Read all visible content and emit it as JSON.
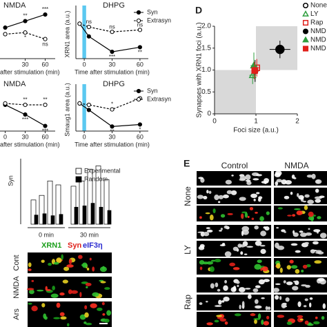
{
  "chart_data": [
    {
      "type": "line",
      "title": "NMDA",
      "x_label": "after stimulation (min)",
      "x": [
        0,
        30,
        60
      ],
      "xlim": [
        -13,
        75
      ],
      "xticks": [
        30,
        60
      ],
      "ylim": [
        0.5,
        2.0
      ],
      "series": [
        {
          "color": "#000000",
          "marker": "filled",
          "values": [
            1.45,
            1.65,
            1.85
          ],
          "significance": [
            null,
            "**",
            "***"
          ]
        },
        {
          "color": "#000000",
          "marker": "open",
          "values": [
            1.25,
            1.3,
            1.1
          ],
          "significance": [
            null,
            "*",
            "ns"
          ]
        }
      ]
    },
    {
      "type": "line",
      "title": "DHPG",
      "x_label": "Time after stimulation (min)",
      "y_label": "XRN1 area (a.u.)",
      "x": [
        -5,
        5,
        30,
        60
      ],
      "xlim": [
        -9,
        69
      ],
      "xticks": [
        0,
        30,
        60
      ],
      "ylim": [
        0,
        1.5
      ],
      "shaded_region": [
        -2,
        2
      ],
      "shade_color": "#5bc8f0",
      "legend": "upper right",
      "series": [
        {
          "name": "Syn",
          "color": "#000000",
          "marker": "filled",
          "values": [
            1.07,
            0.68,
            0.21,
            0.35
          ],
          "significance": [
            null,
            null,
            "***",
            "**"
          ]
        },
        {
          "name": "Extrasyn",
          "color": "#000000",
          "marker": "open",
          "values": [
            1.07,
            0.97,
            0.82,
            0.88
          ],
          "significance": [
            null,
            "ns",
            "ns",
            "ns"
          ]
        }
      ]
    },
    {
      "type": "line",
      "title": "NMDA",
      "x_label": "after stimulation (min)",
      "x": [
        0,
        30,
        60
      ],
      "xlim": [
        -13,
        75
      ],
      "xticks": [
        0,
        30,
        60
      ],
      "ylim": [
        0.5,
        2.0
      ],
      "series": [
        {
          "color": "#000000",
          "marker": "filled",
          "values": [
            1.42,
            1.08,
            0.68
          ],
          "significance": [
            null,
            "***",
            "***"
          ]
        },
        {
          "color": "#000000",
          "marker": "open",
          "values": [
            1.47,
            1.42,
            1.42
          ],
          "significance": [
            null,
            "**",
            "**"
          ]
        }
      ]
    },
    {
      "type": "line",
      "title": "DHPG",
      "x_label": "Time after stimulation (min)",
      "y_label": "Smaug1 area (a.u.)",
      "x": [
        -5,
        5,
        30,
        60
      ],
      "xlim": [
        -9,
        69
      ],
      "xticks": [
        0,
        30,
        60
      ],
      "ylim": [
        0,
        1.5
      ],
      "shaded_region": [
        -2,
        2
      ],
      "shade_color": "#5bc8f0",
      "legend": "upper right",
      "series": [
        {
          "name": "Syn",
          "color": "#000000",
          "marker": "filled",
          "values": [
            0.97,
            0.74,
            0.16,
            0.23
          ],
          "significance": [
            null,
            null,
            "**",
            "*"
          ]
        },
        {
          "name": "Extrasyn",
          "color": "#000000",
          "marker": "open",
          "values": [
            0.97,
            0.92,
            0.76,
            1.15
          ],
          "significance": [
            null,
            null,
            "*",
            "*"
          ]
        }
      ]
    },
    {
      "type": "scatter",
      "label": "D",
      "x_label": "Foci size (a.u.)",
      "y_label": "Synapses with XRN1 foci (a.u.)",
      "xlim": [
        0,
        2
      ],
      "xticks": [
        0,
        1,
        2
      ],
      "ylim": [
        0,
        2
      ],
      "yticks": [
        0,
        0.5,
        {
          "value": 1,
          "label": "1.0"
        },
        {
          "value": 1.5,
          "label": "1.5"
        },
        {
          "value": 2,
          "label": "2.0"
        }
      ],
      "shaded_regions": [
        [
          0,
          1,
          0,
          1
        ],
        [
          1,
          2,
          1,
          2
        ]
      ],
      "shade_color": "#d9d9d9",
      "legend": "upper right",
      "series": [
        {
          "name": "None",
          "marker": "circle",
          "filled": false,
          "color": "#000000",
          "x": [
            0.98
          ],
          "values": [
            0.98
          ],
          "xerr": [
            0.08
          ],
          "yerr": [
            0.25
          ]
        },
        {
          "name": "LY",
          "marker": "triangle",
          "filled": false,
          "color": "#2e9e3e",
          "x": [
            0.92
          ],
          "values": [
            0.88
          ],
          "xerr": [
            0.08
          ],
          "yerr": [
            0.2
          ]
        },
        {
          "name": "Rap",
          "marker": "square",
          "filled": false,
          "color": "#e0201a",
          "x": [
            1.02
          ],
          "values": [
            1.05
          ],
          "xerr": [
            0.08
          ],
          "yerr": [
            0.2
          ]
        },
        {
          "name": "NMD",
          "marker": "circle",
          "filled": true,
          "color": "#000000",
          "x": [
            1.58
          ],
          "values": [
            1.47
          ],
          "xerr": [
            0.25
          ],
          "yerr": [
            0.2
          ]
        },
        {
          "name": "NMD",
          "marker": "triangle",
          "filled": true,
          "color": "#2e9e3e",
          "x": [
            0.95
          ],
          "values": [
            1.1
          ],
          "xerr": [
            0.08
          ],
          "yerr": [
            0.3
          ]
        },
        {
          "name": "NMD",
          "marker": "square",
          "filled": true,
          "color": "#e0201a",
          "x": [
            0.97
          ],
          "values": [
            0.99
          ],
          "xerr": [
            0.08
          ],
          "yerr": [
            0.2
          ]
        }
      ]
    },
    {
      "type": "bar",
      "y_label": "Syn",
      "categories": [
        null,
        null,
        null,
        null,
        null,
        null,
        null,
        null,
        null
      ],
      "groups": [
        "0 min",
        "30 min"
      ],
      "ylim": [
        0,
        100
      ],
      "series": [
        {
          "name": "Experimental",
          "color": "#ffffff",
          "values": [
            37,
            44,
            66,
            60,
            58,
            66,
            84,
            89,
            68
          ]
        },
        {
          "name": "Random",
          "color": "#000000",
          "values": [
            14,
            16,
            13,
            15,
            26,
            28,
            32,
            26,
            21
          ]
        }
      ]
    }
  ],
  "micrographs": {
    "channels": [
      {
        "name": "XRN1",
        "color": "#1a9e1a"
      },
      {
        "name": "Syn",
        "color": "#e0201a"
      },
      {
        "name": "eIF3η",
        "color": "#2a2ad0"
      }
    ],
    "rows": [
      "Cont",
      "NMDA",
      "Ars"
    ]
  },
  "panel_e": {
    "label": "E",
    "columns": [
      "Control",
      "NMDA"
    ],
    "rows": [
      "None",
      "LY",
      "Rap"
    ]
  }
}
